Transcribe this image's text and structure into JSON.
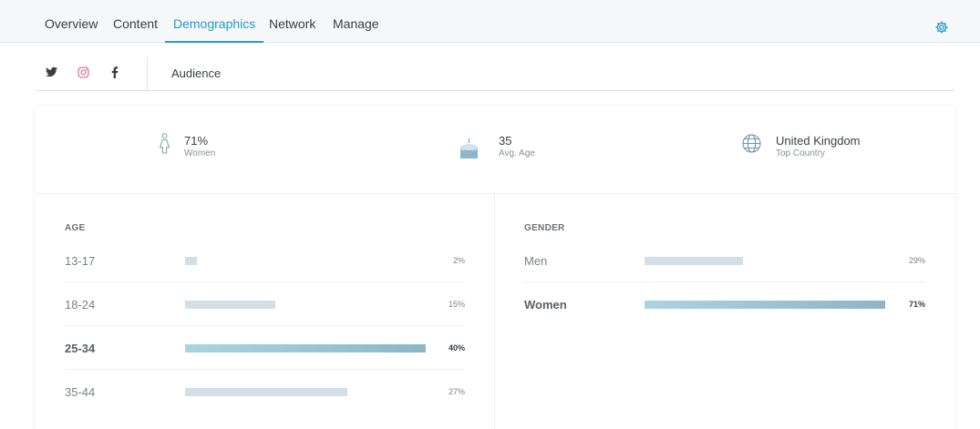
{
  "nav": {
    "tabs": [
      {
        "label": "Overview"
      },
      {
        "label": "Content"
      },
      {
        "label": "Demographics"
      },
      {
        "label": "Network"
      },
      {
        "label": "Manage"
      }
    ],
    "active_tab": "Demographics",
    "settings_icon": "gear-icon"
  },
  "subnav": {
    "networks": [
      "twitter-icon",
      "instagram-icon",
      "facebook-icon"
    ],
    "active_network": "instagram-icon",
    "section": "Audience"
  },
  "stats": [
    {
      "icon": "person-icon",
      "value": "71%",
      "label": "Women"
    },
    {
      "icon": "cake-icon",
      "value": "35",
      "label": "Avg. Age"
    },
    {
      "icon": "globe-icon",
      "value": "United Kingdom",
      "label": "Top Country"
    }
  ],
  "age": {
    "title": "AGE",
    "rows": [
      {
        "label": "13-17",
        "pct": "2%",
        "fraction": 0.02,
        "highlight": false
      },
      {
        "label": "18-24",
        "pct": "15%",
        "fraction": 0.15,
        "highlight": false
      },
      {
        "label": "25-34",
        "pct": "40%",
        "fraction": 0.4,
        "highlight": true
      },
      {
        "label": "35-44",
        "pct": "27%",
        "fraction": 0.27,
        "highlight": false
      }
    ]
  },
  "gender": {
    "title": "GENDER",
    "rows": [
      {
        "label": "Men",
        "pct": "29%",
        "fraction": 0.29,
        "highlight": false
      },
      {
        "label": "Women",
        "pct": "71%",
        "fraction": 0.71,
        "highlight": true
      }
    ]
  },
  "colors": {
    "accent": "#2b9bc4",
    "instagram": "#e06a93",
    "bar": "#d3dfe6",
    "bar_highlight": "#9cc4d3"
  }
}
